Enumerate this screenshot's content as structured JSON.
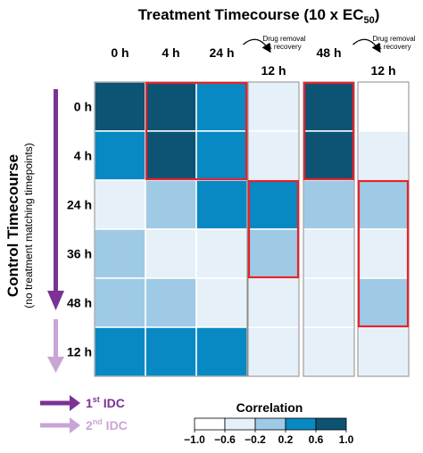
{
  "chart_data": {
    "type": "heatmap",
    "title": {
      "main": "Treatment Timecourse (10 x EC",
      "sub": "50",
      "close": ")"
    },
    "x_groups": [
      {
        "columns": [
          "0 h",
          "4 h",
          "24 h"
        ]
      },
      {
        "columns": [
          "12 h"
        ],
        "annotation": [
          "Drug removal",
          "& recovery"
        ]
      },
      {
        "columns": [
          "48 h"
        ]
      },
      {
        "columns": [
          "12 h"
        ],
        "annotation": [
          "Drug removal",
          "& recovery"
        ]
      }
    ],
    "ylabel": "Control Timecourse",
    "ylabel_sub": "(no treatment matching timepoints)",
    "rows": [
      "0 h",
      "4 h",
      "24 h",
      "36 h",
      "48 h",
      "12 h"
    ],
    "values": [
      [
        0.85,
        0.85,
        0.5,
        -0.5,
        0.85,
        -1.0
      ],
      [
        0.5,
        0.85,
        0.5,
        -0.5,
        0.85,
        -0.5
      ],
      [
        -0.5,
        0.1,
        0.5,
        0.5,
        0.1,
        0.1
      ],
      [
        0.1,
        -0.5,
        -0.5,
        0.1,
        -0.5,
        -0.5
      ],
      [
        0.1,
        0.1,
        -0.5,
        -0.5,
        -0.5,
        0.1
      ],
      [
        0.5,
        0.5,
        0.5,
        -0.5,
        -0.5,
        -0.5
      ]
    ],
    "highlights": [
      {
        "rows": [
          0,
          1
        ],
        "cols": [
          1,
          2
        ]
      },
      {
        "rows": [
          2,
          3
        ],
        "cols": [
          3,
          3
        ]
      },
      {
        "rows": [
          0,
          1
        ],
        "cols": [
          4,
          4
        ]
      },
      {
        "rows": [
          2,
          4
        ],
        "cols": [
          5,
          5
        ]
      }
    ],
    "highlight_color": "#e8222b",
    "legend": {
      "title": "Correlation",
      "ticks": [
        "−1.0",
        "−0.6",
        "−0.2",
        "0.2",
        "0.6",
        "1.0"
      ],
      "bin_colors": [
        "#ffffff",
        "#e6f0f8",
        "#9ecae6",
        "#0889c3",
        "#0d5374"
      ]
    },
    "arrow_legend": [
      {
        "label": "IDC",
        "ordinal": "1",
        "suffix": "st",
        "color": "#7b3294"
      },
      {
        "label": "IDC",
        "ordinal": "2",
        "suffix": "nd",
        "color": "#c9a5d6"
      }
    ]
  }
}
